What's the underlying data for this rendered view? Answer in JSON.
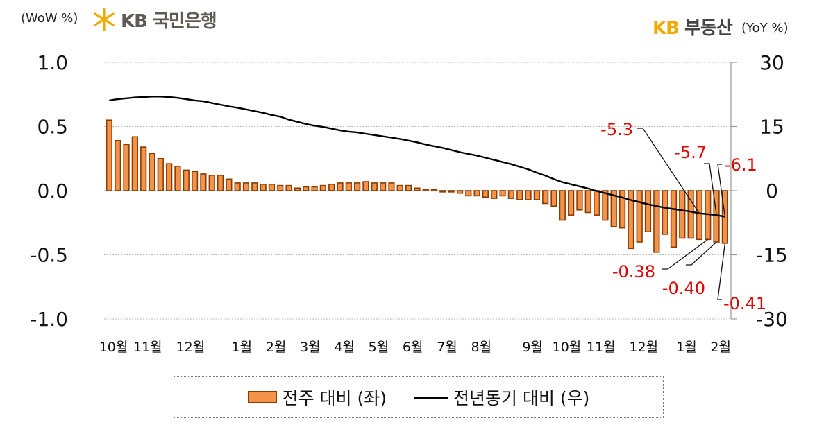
{
  "header": {
    "left_unit": "(WoW %)",
    "right_unit": "(YoY %)",
    "logo_left_text": "KB 국민은행",
    "logo_right_kb": "KB",
    "logo_right_name": "부동산"
  },
  "legend": {
    "bar_label": "전주 대비 (좌)",
    "line_label": "전년동기 대비 (우)"
  },
  "colors": {
    "bar_fill": "#f5924a",
    "bar_edge": "#8a3c00",
    "line": "#000000",
    "annotation": "#e00000",
    "grid": "#bbbbbb"
  },
  "chart_data": {
    "type": "bar+line",
    "x_labels": [
      "10월",
      "11월",
      "12월",
      "1월",
      "2월",
      "3월",
      "4월",
      "5월",
      "6월",
      "7월",
      "8월",
      "9월",
      "10월",
      "11월",
      "12월",
      "1월",
      "2월"
    ],
    "x_label_weeks": [
      0,
      4,
      9,
      15,
      19,
      23,
      27,
      31,
      35,
      39,
      43,
      49,
      53,
      57,
      62,
      67,
      71
    ],
    "left_axis": {
      "ticks": [
        "1.0",
        "0.5",
        "0.0",
        "-0.5",
        "-1.0"
      ],
      "range": [
        -1.0,
        1.0
      ]
    },
    "right_axis": {
      "ticks": [
        "30",
        "15",
        "0",
        "-15",
        "-30"
      ],
      "range": [
        -30,
        30
      ]
    },
    "series": [
      {
        "name": "전주 대비 (좌)",
        "type": "bar",
        "axis": "left",
        "values": [
          0.55,
          0.39,
          0.36,
          0.42,
          0.34,
          0.29,
          0.25,
          0.21,
          0.19,
          0.16,
          0.15,
          0.13,
          0.12,
          0.12,
          0.09,
          0.06,
          0.06,
          0.06,
          0.05,
          0.05,
          0.04,
          0.04,
          0.02,
          0.03,
          0.03,
          0.04,
          0.05,
          0.06,
          0.06,
          0.06,
          0.07,
          0.06,
          0.06,
          0.06,
          0.04,
          0.04,
          0.02,
          0.01,
          0.01,
          -0.01,
          -0.01,
          -0.02,
          -0.04,
          -0.04,
          -0.05,
          -0.06,
          -0.04,
          -0.06,
          -0.07,
          -0.07,
          -0.07,
          -0.1,
          -0.12,
          -0.23,
          -0.19,
          -0.15,
          -0.17,
          -0.19,
          -0.23,
          -0.28,
          -0.29,
          -0.45,
          -0.4,
          -0.32,
          -0.48,
          -0.34,
          -0.44,
          -0.37,
          -0.37,
          -0.38,
          -0.38,
          -0.4,
          -0.41
        ]
      },
      {
        "name": "전년동기 대비 (우)",
        "type": "line",
        "axis": "right",
        "values": [
          21.1,
          21.4,
          21.6,
          21.8,
          21.9,
          22.0,
          22.0,
          21.9,
          21.7,
          21.4,
          21.1,
          20.9,
          20.5,
          20.1,
          19.7,
          19.4,
          19.0,
          18.6,
          18.2,
          17.7,
          17.3,
          16.6,
          16.1,
          15.6,
          15.2,
          14.9,
          14.5,
          14.1,
          13.8,
          13.6,
          13.3,
          13.0,
          12.7,
          12.4,
          12.1,
          11.7,
          11.3,
          10.8,
          10.4,
          10.0,
          9.5,
          9.0,
          8.6,
          8.2,
          7.7,
          7.2,
          6.7,
          6.2,
          5.6,
          5.0,
          4.2,
          3.5,
          2.7,
          2.0,
          1.5,
          1.0,
          0.5,
          -0.1,
          -0.6,
          -1.1,
          -1.6,
          -2.2,
          -2.7,
          -3.2,
          -3.6,
          -4.0,
          -4.3,
          -4.6,
          -4.9,
          -5.3,
          -5.5,
          -5.7,
          -6.1
        ]
      }
    ],
    "annotations": [
      {
        "text": "-5.3",
        "series": "전년동기 대비 (우)",
        "week": 69
      },
      {
        "text": "-5.7",
        "series": "전년동기 대비 (우)",
        "week": 71
      },
      {
        "text": "-6.1",
        "series": "전년동기 대비 (우)",
        "week": 72
      },
      {
        "text": "-0.38",
        "series": "전주 대비 (좌)",
        "week": 70
      },
      {
        "text": "-0.40",
        "series": "전주 대비 (좌)",
        "week": 71
      },
      {
        "text": "-0.41",
        "series": "전주 대비 (좌)",
        "week": 72
      }
    ]
  }
}
